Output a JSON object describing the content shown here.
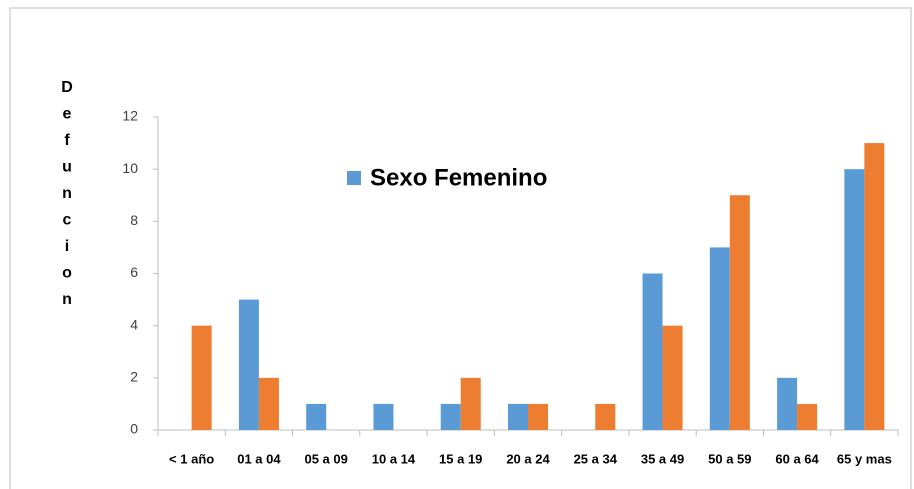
{
  "chart_data": {
    "type": "bar",
    "y_label": "Defuncion",
    "categories": [
      "< 1 año",
      "01 a 04",
      "05 a 09",
      "10 a 14",
      "15 a 19",
      "20 a 24",
      "25 a 34",
      "35 a 49",
      "50 a 59",
      "60 a 64",
      "65 y mas"
    ],
    "series": [
      {
        "name": "Sexo Femenino",
        "color": "#5b9bd5",
        "values": [
          0,
          5,
          1,
          1,
          1,
          1,
          0,
          6,
          7,
          2,
          10
        ]
      },
      {
        "color": "#ed7d31",
        "values": [
          4,
          2,
          0,
          0,
          2,
          1,
          1,
          4,
          9,
          1,
          11
        ]
      }
    ],
    "ylim": [
      0,
      12
    ],
    "yticks": [
      0,
      2,
      4,
      6,
      8,
      10,
      12
    ],
    "grid": false
  }
}
